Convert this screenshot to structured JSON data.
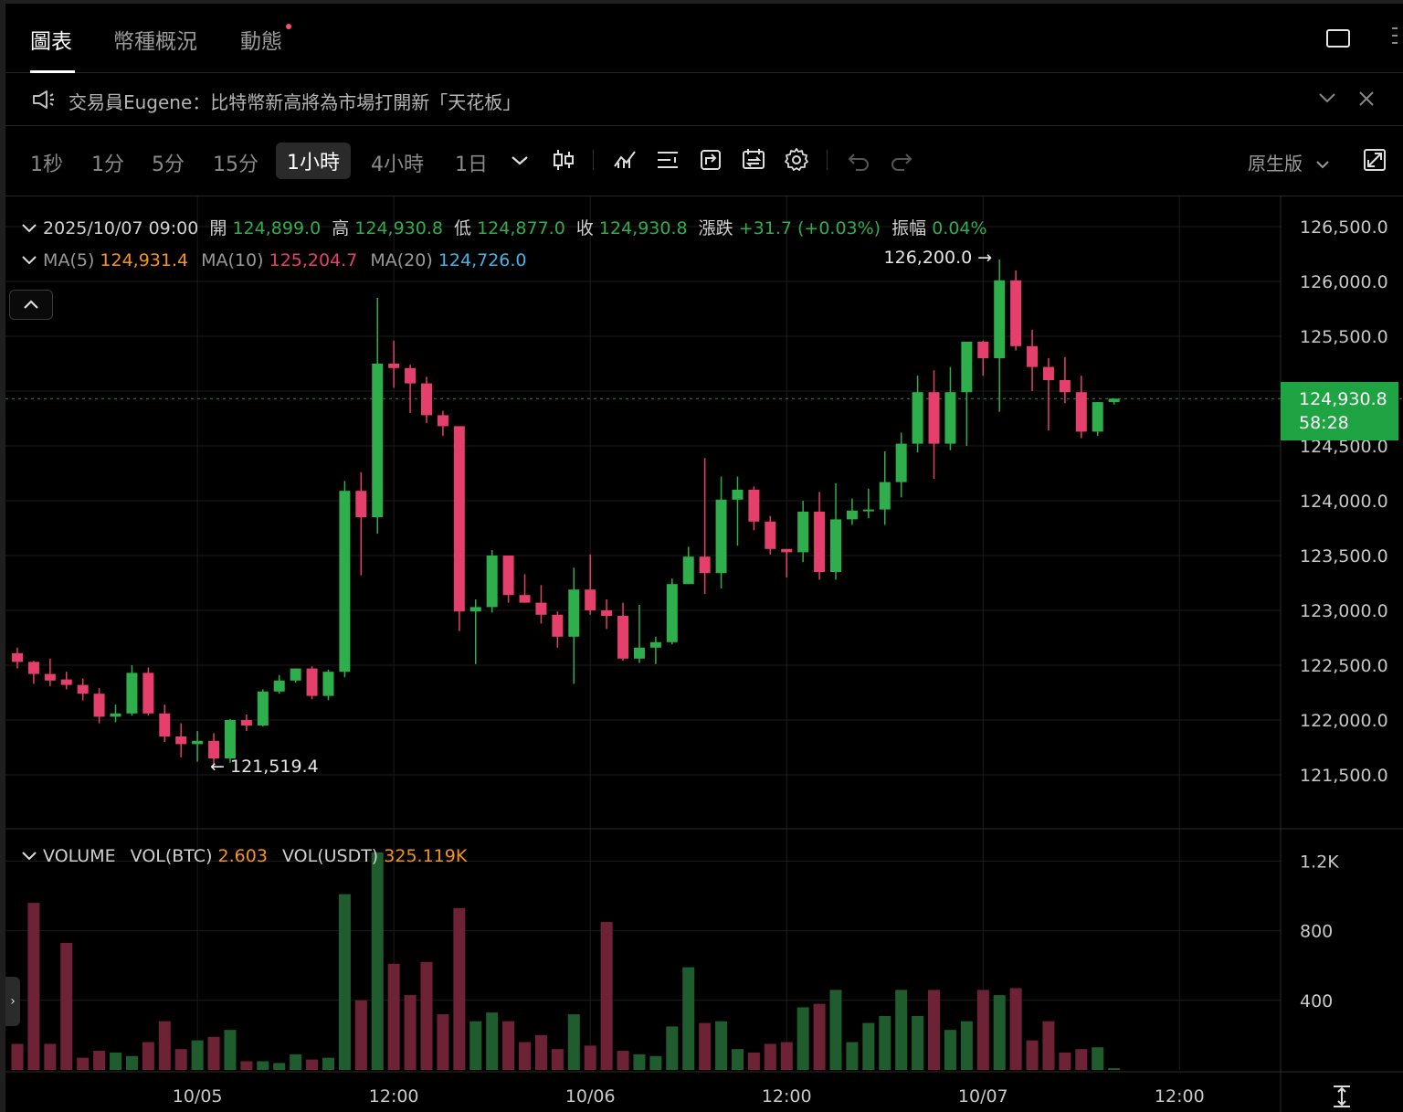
{
  "tabs": [
    {
      "label": "圖表",
      "active": true
    },
    {
      "label": "幣種概況",
      "active": false
    },
    {
      "label": "動態",
      "active": false,
      "badge_dot": true
    }
  ],
  "announcement": {
    "icon": "megaphone-icon",
    "text": "交易員Eugene：比特幣新高將為市場打開新「天花板」"
  },
  "toolbar": {
    "timeframes": [
      {
        "label": "1秒"
      },
      {
        "label": "1分"
      },
      {
        "label": "5分"
      },
      {
        "label": "15分"
      },
      {
        "label": "1小時",
        "active": true
      },
      {
        "label": "4小時"
      },
      {
        "label": "1日"
      }
    ],
    "native_label": "原生版"
  },
  "ohlc": {
    "datetime": "2025/10/07 09:00",
    "open_label": "開",
    "open": "124,899.0",
    "high_label": "高",
    "high": "124,930.8",
    "low_label": "低",
    "low": "124,877.0",
    "close_label": "收",
    "close": "124,930.8",
    "change_label": "漲跌",
    "change": "+31.7 (+0.03%)",
    "amplitude_label": "振幅",
    "amplitude": "0.04%"
  },
  "ma": {
    "ma5_label": "MA(5)",
    "ma5": "124,931.4",
    "ma10_label": "MA(10)",
    "ma10": "125,204.7",
    "ma20_label": "MA(20)",
    "ma20": "124,726.0"
  },
  "volume_legend": {
    "title": "VOLUME",
    "btc_label": "VOL(BTC)",
    "btc": "2.603",
    "usdt_label": "VOL(USDT)",
    "usdt": "325.119K"
  },
  "current_price": {
    "price": "124,930.8",
    "countdown": "58:28"
  },
  "colors": {
    "up": "#2fae4c",
    "down": "#e4406b",
    "up_vol": "#1f5c2e",
    "down_vol": "#6e2236",
    "grid": "#1c1c1c"
  },
  "chart_data": {
    "type": "candlestick",
    "interval": "1小時",
    "price_axis": {
      "ticks": [
        "126,500.0",
        "126,000.0",
        "125,500.0",
        "125,000.0",
        "124,500.0",
        "124,000.0",
        "123,500.0",
        "123,000.0",
        "122,500.0",
        "122,000.0",
        "121,500.0"
      ],
      "values": [
        126500,
        126000,
        125500,
        125000,
        124500,
        124000,
        123500,
        123000,
        122500,
        122000,
        121500
      ]
    },
    "volume_axis": {
      "ticks": [
        "1.2K",
        "800",
        "400"
      ],
      "values": [
        1200,
        800,
        400
      ]
    },
    "time_axis": {
      "labels": [
        "10/05",
        "12:00",
        "10/06",
        "12:00",
        "10/07",
        "12:00"
      ],
      "candle_index": [
        11,
        23,
        35,
        47,
        59,
        71
      ]
    },
    "high_marker": "126,200.0",
    "low_marker": "121,519.4",
    "candles": [
      [
        122610,
        122660,
        122470,
        122530
      ],
      [
        122530,
        122540,
        122330,
        122420
      ],
      [
        122420,
        122560,
        122310,
        122360
      ],
      [
        122370,
        122440,
        122280,
        122320
      ],
      [
        122320,
        122380,
        122180,
        122240
      ],
      [
        122240,
        122290,
        121970,
        122030
      ],
      [
        122030,
        122140,
        121980,
        122060
      ],
      [
        122060,
        122500,
        122040,
        122430
      ],
      [
        122430,
        122480,
        122040,
        122060
      ],
      [
        122060,
        122140,
        121800,
        121850
      ],
      [
        121850,
        121970,
        121660,
        121780
      ],
      [
        121780,
        121900,
        121620,
        121810
      ],
      [
        121810,
        121880,
        121590,
        121650
      ],
      [
        121650,
        122010,
        121610,
        122000
      ],
      [
        122000,
        122050,
        121900,
        121950
      ],
      [
        121950,
        122280,
        121940,
        122260
      ],
      [
        122260,
        122410,
        122240,
        122360
      ],
      [
        122360,
        122470,
        122340,
        122470
      ],
      [
        122470,
        122490,
        122190,
        122220
      ],
      [
        122220,
        122460,
        122180,
        122440
      ],
      [
        122440,
        124180,
        122390,
        124090
      ],
      [
        124090,
        124260,
        123320,
        123850
      ],
      [
        123850,
        125850,
        123700,
        125250
      ],
      [
        125250,
        125460,
        125030,
        125210
      ],
      [
        125210,
        125240,
        124800,
        125070
      ],
      [
        125070,
        125130,
        124710,
        124780
      ],
      [
        124780,
        124820,
        124590,
        124680
      ],
      [
        124680,
        124670,
        122810,
        122990
      ],
      [
        122990,
        123100,
        122510,
        123030
      ],
      [
        123030,
        123550,
        122980,
        123500
      ],
      [
        123500,
        123480,
        123070,
        123140
      ],
      [
        123140,
        123330,
        123070,
        123070
      ],
      [
        123070,
        123230,
        122880,
        122960
      ],
      [
        122960,
        122990,
        122660,
        122760
      ],
      [
        122760,
        123390,
        122330,
        123190
      ],
      [
        123190,
        123510,
        122960,
        123000
      ],
      [
        123000,
        123100,
        122830,
        122950
      ],
      [
        122950,
        123070,
        122540,
        122560
      ],
      [
        122560,
        123050,
        122520,
        122660
      ],
      [
        122660,
        122760,
        122510,
        122710
      ],
      [
        122710,
        123290,
        122690,
        123240
      ],
      [
        123240,
        123580,
        123240,
        123490
      ],
      [
        123490,
        124390,
        123150,
        123340
      ],
      [
        123340,
        124220,
        123200,
        124010
      ],
      [
        124010,
        124220,
        123590,
        124100
      ],
      [
        124100,
        124130,
        123730,
        123810
      ],
      [
        123810,
        123860,
        123510,
        123560
      ],
      [
        123560,
        123560,
        123300,
        123530
      ],
      [
        123530,
        124000,
        123440,
        123900
      ],
      [
        123900,
        124080,
        123280,
        123350
      ],
      [
        123350,
        124160,
        123280,
        123830
      ],
      [
        123830,
        124020,
        123780,
        123910
      ],
      [
        123910,
        124110,
        123840,
        123920
      ],
      [
        123920,
        124450,
        123780,
        124170
      ],
      [
        124170,
        124620,
        124030,
        124520
      ],
      [
        124520,
        125140,
        124440,
        124990
      ],
      [
        124990,
        125190,
        124200,
        124520
      ],
      [
        124520,
        125220,
        124460,
        124990
      ],
      [
        124990,
        125450,
        124500,
        125450
      ],
      [
        125450,
        125460,
        125140,
        125300
      ],
      [
        125300,
        126200,
        124810,
        126010
      ],
      [
        126010,
        126100,
        125370,
        125410
      ],
      [
        125410,
        125560,
        125000,
        125220
      ],
      [
        125220,
        125300,
        124640,
        125100
      ],
      [
        125100,
        125310,
        124890,
        124990
      ],
      [
        124990,
        125140,
        124570,
        124630
      ],
      [
        124630,
        124900,
        124590,
        124899
      ],
      [
        124899,
        124931,
        124877,
        124931
      ]
    ],
    "volumes": [
      150,
      960,
      150,
      730,
      70,
      110,
      100,
      80,
      160,
      280,
      120,
      170,
      190,
      230,
      50,
      50,
      40,
      90,
      60,
      70,
      1010,
      400,
      1250,
      610,
      430,
      620,
      320,
      930,
      280,
      330,
      280,
      160,
      200,
      120,
      320,
      140,
      850,
      110,
      90,
      80,
      250,
      590,
      270,
      280,
      120,
      100,
      150,
      160,
      360,
      380,
      460,
      160,
      270,
      310,
      460,
      310,
      460,
      230,
      280,
      460,
      430,
      470,
      170,
      280,
      100,
      120,
      130,
      10
    ]
  }
}
